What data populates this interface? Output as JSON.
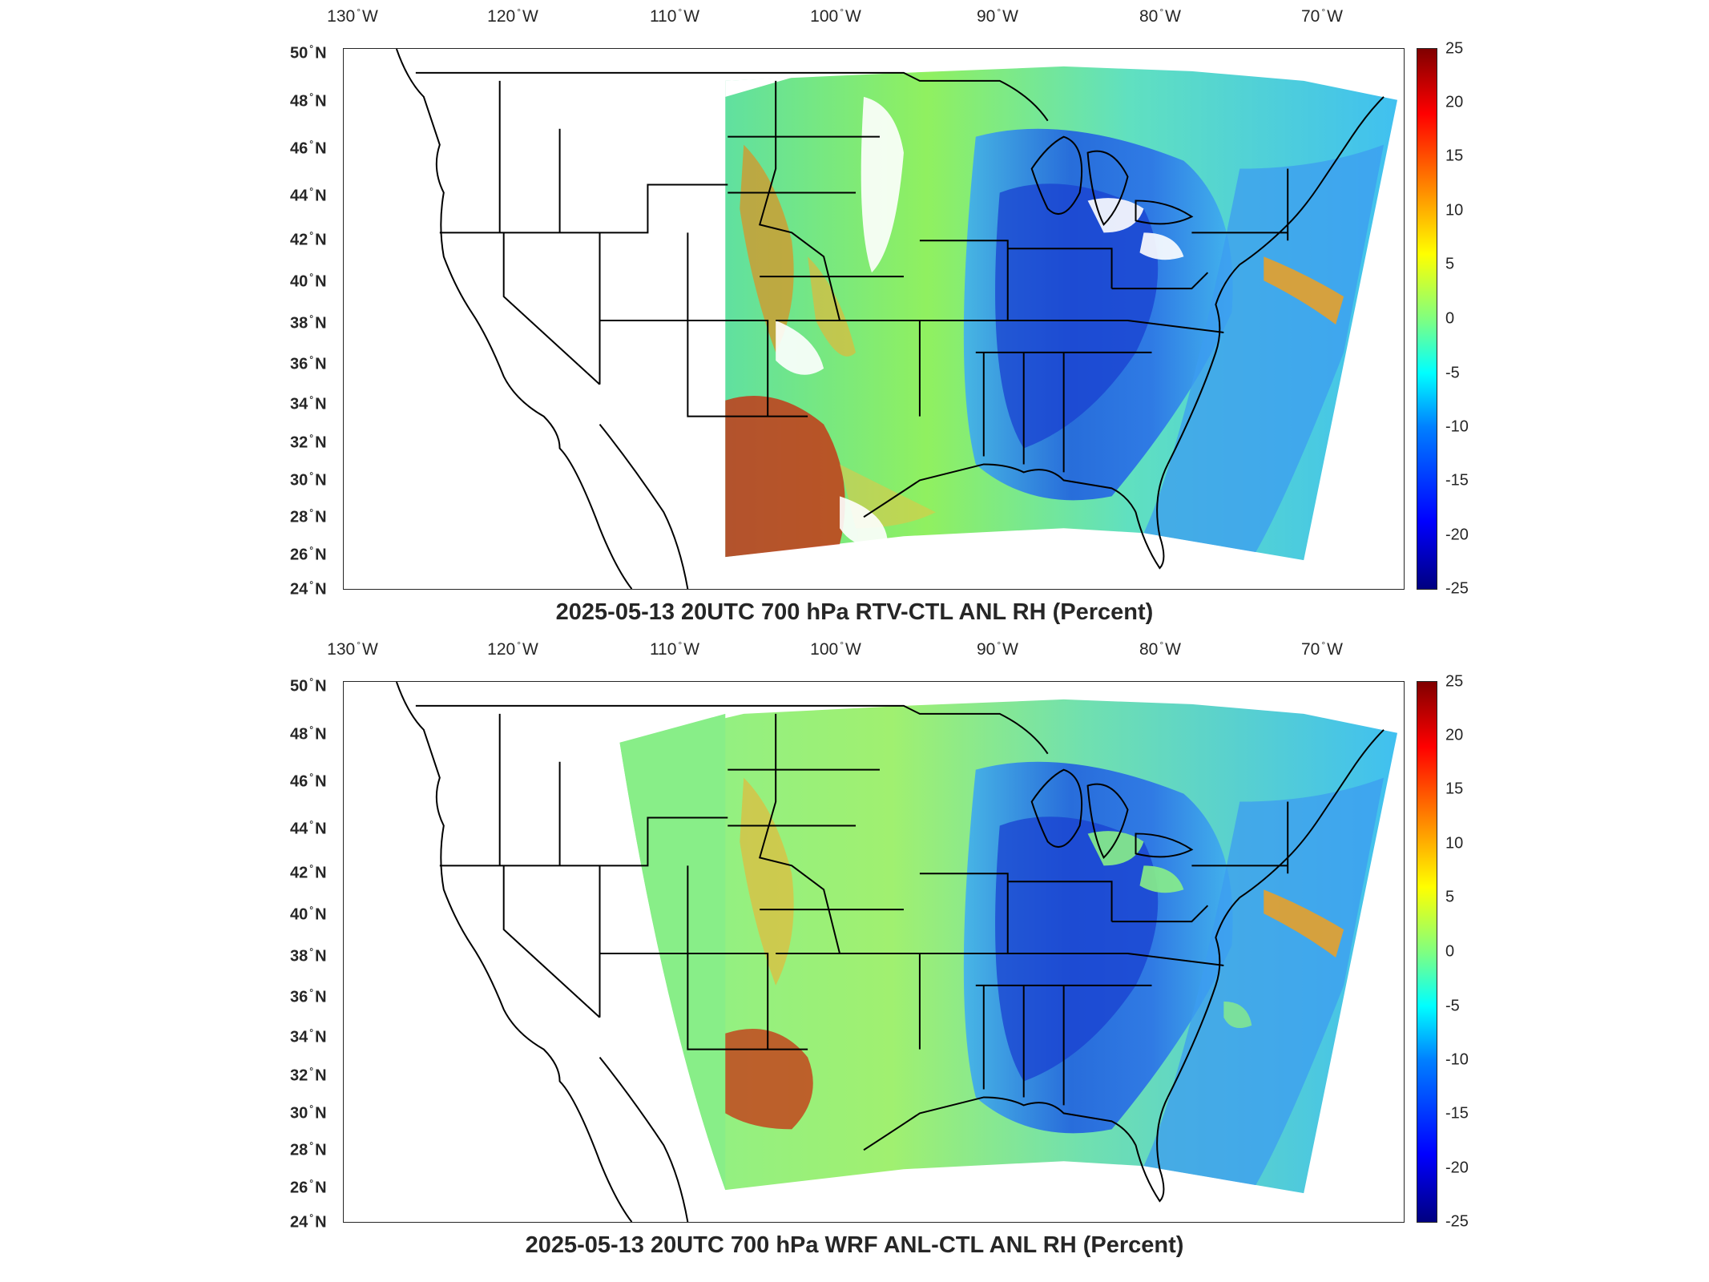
{
  "figure": {
    "panels": [
      {
        "title": "2025-05-13 20UTC 700 hPa RTV-CTL ANL RH (Percent)",
        "lon_ticks": [
          "130",
          "120",
          "110",
          "100",
          "90",
          "80",
          "70"
        ],
        "lon_suffix": "W",
        "lat_ticks": [
          "50",
          "48",
          "46",
          "44",
          "42",
          "40",
          "38",
          "36",
          "34",
          "32",
          "30",
          "28",
          "26",
          "24"
        ],
        "lat_suffix": "N",
        "colorbar": {
          "ticks": [
            "25",
            "20",
            "15",
            "10",
            "5",
            "0",
            "-5",
            "-10",
            "-15",
            "-20",
            "-25"
          ],
          "range": [
            -25,
            25
          ],
          "colormap": "jet"
        },
        "missing_data": "white"
      },
      {
        "title": "2025-05-13 20UTC 700 hPa WRF ANL-CTL ANL RH (Percent)",
        "lon_ticks": [
          "130",
          "120",
          "110",
          "100",
          "90",
          "80",
          "70"
        ],
        "lon_suffix": "W",
        "lat_ticks": [
          "50",
          "48",
          "46",
          "44",
          "42",
          "40",
          "38",
          "36",
          "34",
          "32",
          "30",
          "28",
          "26",
          "24"
        ],
        "lat_suffix": "N",
        "colorbar": {
          "ticks": [
            "25",
            "20",
            "15",
            "10",
            "5",
            "0",
            "-5",
            "-10",
            "-15",
            "-20",
            "-25"
          ],
          "range": [
            -25,
            25
          ],
          "colormap": "jet"
        },
        "missing_data": "none"
      }
    ]
  },
  "colors": {
    "dry_blue": "#2060e0",
    "deep_blue": "#1030c0",
    "cyan": "#20d0f0",
    "green": "#80f080",
    "yellow": "#f0f040",
    "orange": "#f08020",
    "red": "#d02010",
    "dark_red": "#900000"
  }
}
